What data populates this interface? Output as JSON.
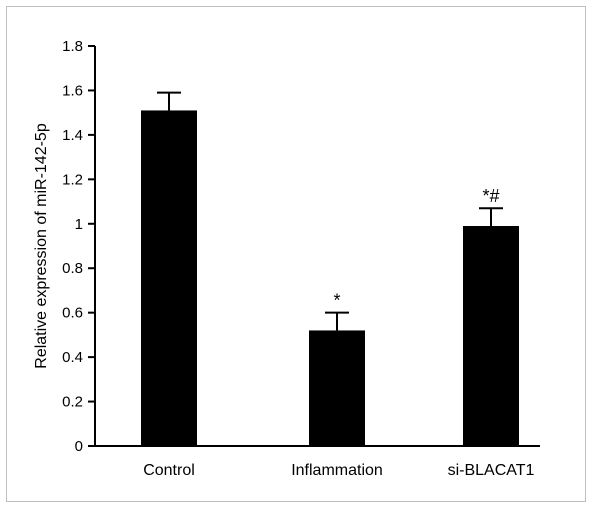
{
  "chart_data": {
    "type": "bar",
    "title": "",
    "xlabel": "",
    "ylabel": "Relative expression of miR-142-5p",
    "ylim": [
      0,
      1.8
    ],
    "yticks": [
      0,
      0.2,
      0.4,
      0.6,
      0.8,
      1,
      1.2,
      1.4,
      1.6,
      1.8
    ],
    "ytick_labels": [
      "0",
      "0.2",
      "0.4",
      "0.6",
      "0.8",
      "1",
      "1.2",
      "1.4",
      "1.6",
      "1.8"
    ],
    "categories": [
      "Control",
      "Inflammation",
      "si-BLACAT1"
    ],
    "values": [
      1.51,
      0.52,
      0.99
    ],
    "error": [
      0.08,
      0.08,
      0.08
    ],
    "annotations": [
      "",
      "*",
      "*#"
    ],
    "bar_color": "#000000",
    "grid": false,
    "legend": "none"
  }
}
